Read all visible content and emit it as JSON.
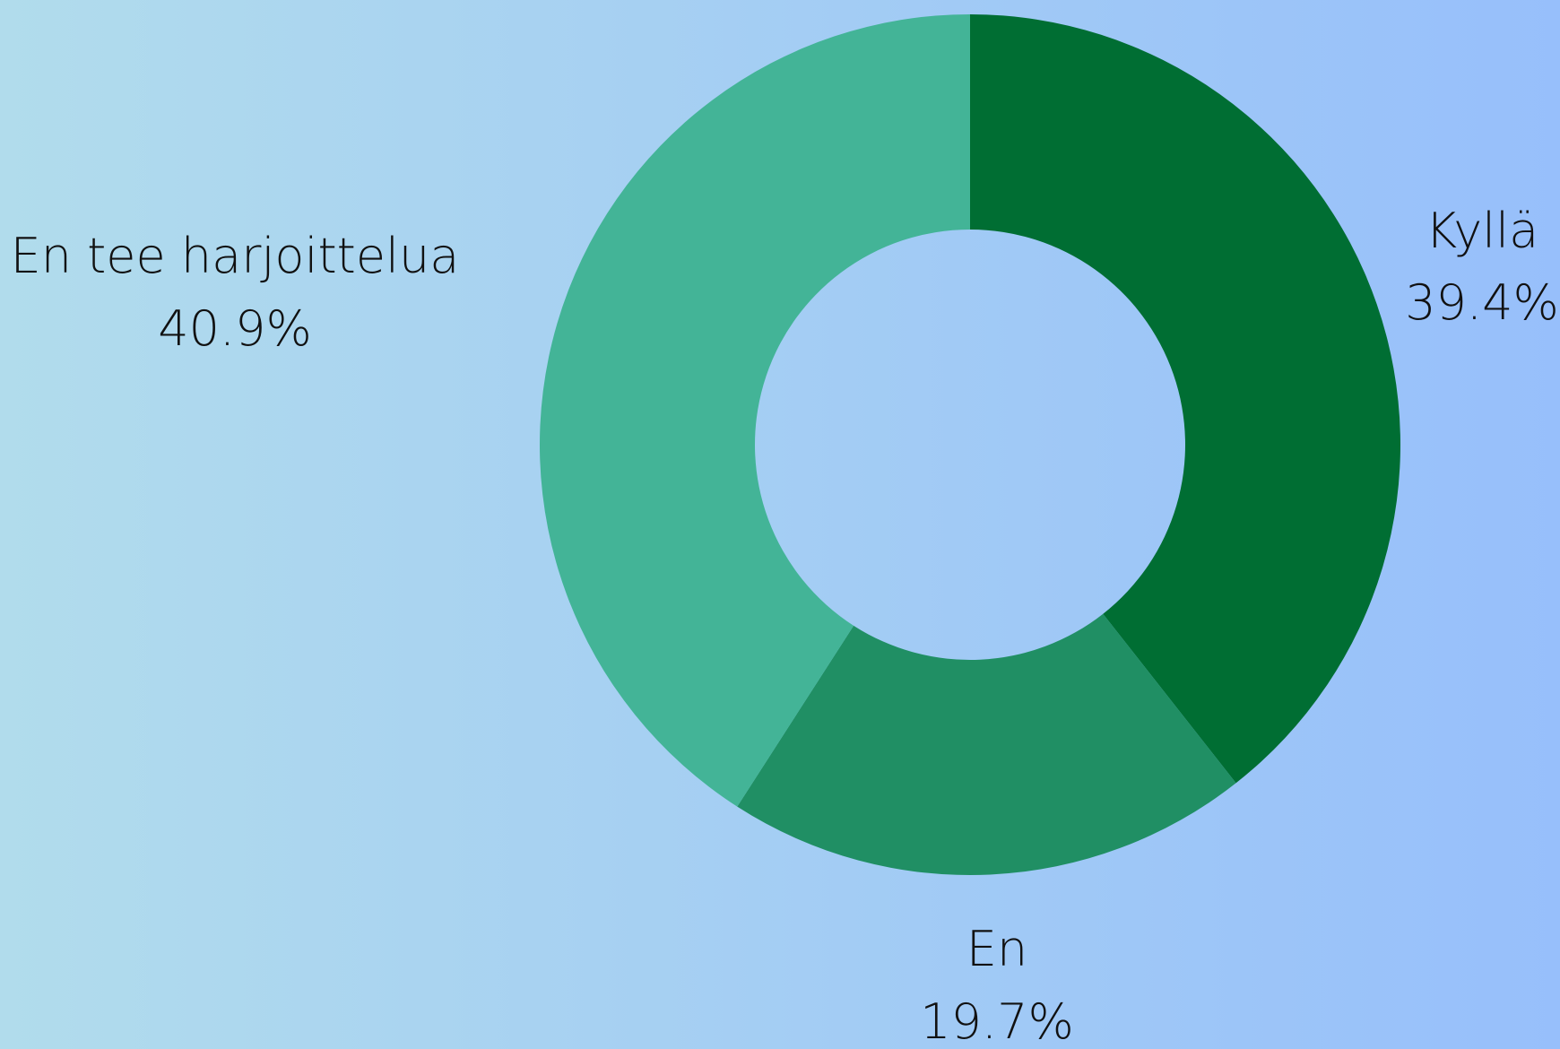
{
  "chart_data": {
    "type": "donut",
    "categories": [
      "Kyllä",
      "En",
      "En tee harjoittelua"
    ],
    "values": [
      39.4,
      19.7,
      40.9
    ],
    "value_labels": [
      "39.4%",
      "19.7%",
      "40.9%"
    ],
    "colors": [
      "#006e33",
      "#208f64",
      "#43b497"
    ]
  }
}
